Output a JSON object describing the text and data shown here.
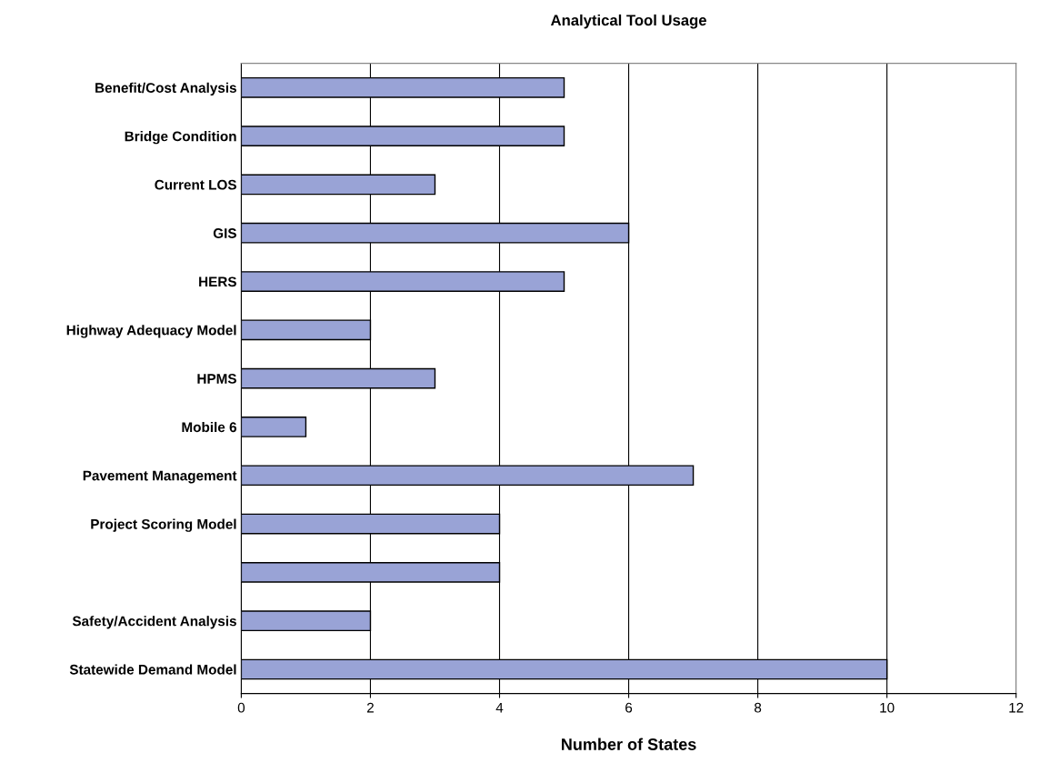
{
  "chart_data": {
    "type": "bar",
    "orientation": "horizontal",
    "title": "Analytical Tool Usage",
    "xlabel": "Number of States",
    "categories": [
      "Benefit/Cost Analysis",
      "Bridge Condition",
      "Current LOS",
      "GIS",
      "HERS",
      "Highway Adequacy Model",
      "HPMS",
      "Mobile 6",
      "Pavement Management",
      "Project Scoring Model",
      null,
      "Safety/Accident Analysis",
      "Statewide Demand Model"
    ],
    "values": [
      5,
      5,
      3,
      6,
      5,
      2,
      3,
      1,
      7,
      4,
      4,
      2,
      10
    ],
    "color": "#99a3d6",
    "xlim": [
      0,
      12
    ],
    "xticks": [
      0,
      2,
      4,
      6,
      8,
      10,
      12
    ],
    "grid": "x"
  }
}
